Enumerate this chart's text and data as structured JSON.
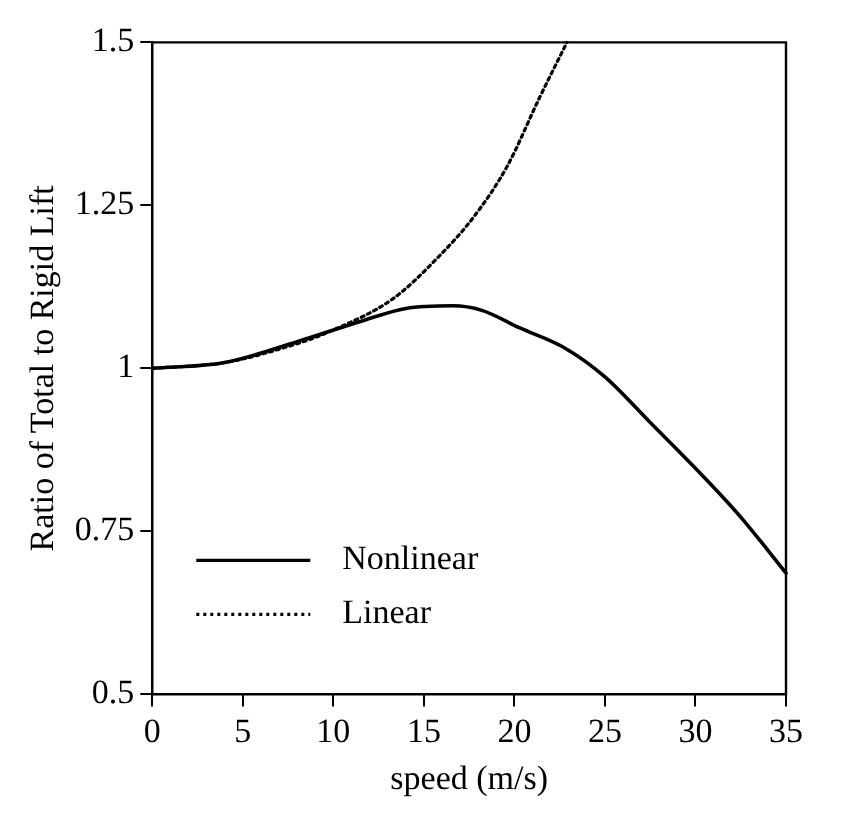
{
  "chart_data": {
    "type": "line",
    "xlabel": "speed (m/s)",
    "ylabel": "Ratio of Total to Rigid Lift",
    "xlim": [
      0,
      35
    ],
    "xticks": [
      0,
      5,
      10,
      15,
      20,
      25,
      30,
      35
    ],
    "ylim": [
      0.5,
      1.5
    ],
    "yticks": [
      0.5,
      {
        "value": 0.75,
        "label": "0.75"
      },
      1,
      {
        "value": 1.25,
        "label": "1.25"
      },
      1.5
    ],
    "grid": false,
    "legend": "bottom left",
    "marker": "none",
    "series": [
      {
        "name": "Nonlinear",
        "color": "#000000",
        "line_style": "solid",
        "x": [
          0,
          4,
          8,
          11.5,
          14,
          16.6,
          18.2,
          20.3,
          22.8,
          25,
          27.5,
          30.2,
          32.5,
          35
        ],
        "values": [
          1.0,
          1.009,
          1.041,
          1.072,
          1.092,
          1.096,
          1.089,
          1.062,
          1.031,
          0.987,
          0.917,
          0.841,
          0.772,
          0.686
        ]
      },
      {
        "name": "Linear",
        "color": "#000000",
        "line_style": "dotted",
        "x": [
          0,
          4,
          8,
          9.75,
          13.3,
          15.7,
          17.8,
          19.6,
          21.4,
          22.9
        ],
        "values": [
          1.0,
          1.009,
          1.038,
          1.056,
          1.107,
          1.168,
          1.234,
          1.31,
          1.416,
          1.5
        ]
      }
    ]
  }
}
